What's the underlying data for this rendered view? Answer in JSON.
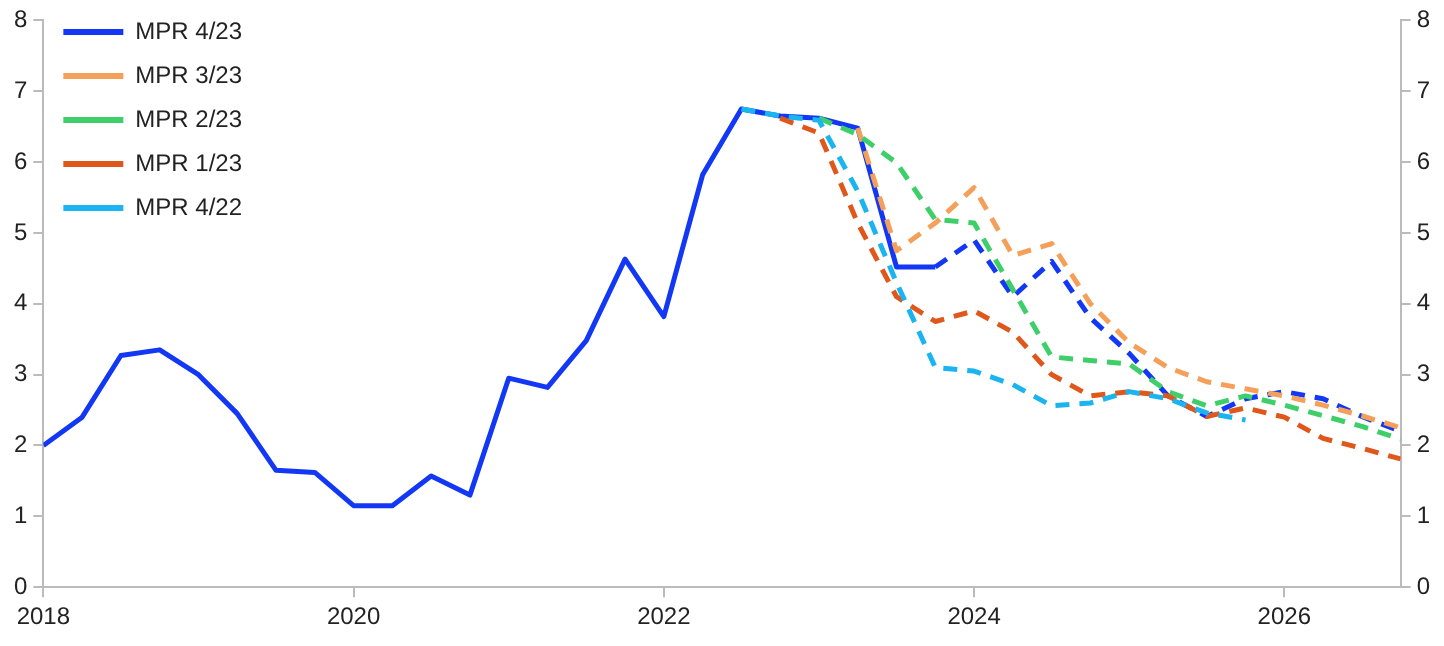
{
  "chart_data": {
    "type": "line",
    "xlim": [
      2018,
      2026.75
    ],
    "xticks": [
      2018,
      2020,
      2022,
      2024,
      2026
    ],
    "ylim": [
      0,
      8
    ],
    "yticks": [
      0,
      1,
      2,
      3,
      4,
      5,
      6,
      7,
      8
    ],
    "y2lim": [
      0,
      8
    ],
    "y2ticks": [
      0,
      1,
      2,
      3,
      4,
      5,
      6,
      7,
      8
    ],
    "grid": false,
    "legend": "top left",
    "marker": "none",
    "series": [
      {
        "color": "#1238f5",
        "line_style": "solid",
        "x": [
          2018,
          2018.25,
          2018.5,
          2018.75,
          2019,
          2019.25,
          2019.5,
          2019.75,
          2020,
          2020.25,
          2020.5,
          2020.75,
          2021,
          2021.25,
          2021.5,
          2021.75,
          2022,
          2022.25,
          2022.5,
          2022.75,
          2023,
          2023.25,
          2023.5,
          2023.75
        ],
        "values": [
          2.0,
          2.4,
          3.27,
          3.35,
          3.0,
          2.45,
          1.65,
          1.62,
          1.15,
          1.15,
          1.57,
          1.3,
          2.95,
          2.82,
          3.48,
          4.63,
          3.82,
          5.82,
          6.75,
          6.65,
          6.62,
          6.48,
          4.52,
          4.52
        ]
      },
      {
        "name": "MPR 4/23",
        "color": "#1238f5",
        "line_style": "dashed",
        "x": [
          2023.75,
          2024,
          2024.25,
          2024.5,
          2024.75,
          2025,
          2025.25,
          2025.5,
          2025.75,
          2026,
          2026.25,
          2026.5,
          2026.75
        ],
        "values": [
          4.52,
          4.9,
          4.1,
          4.6,
          3.8,
          3.3,
          2.7,
          2.41,
          2.66,
          2.76,
          2.66,
          2.41,
          2.2
        ]
      },
      {
        "name": "MPR 3/23",
        "color": "#f5a05a",
        "line_style": "dashed",
        "x": [
          2023.25,
          2023.5,
          2023.75,
          2024,
          2024.25,
          2024.5,
          2024.75,
          2025,
          2025.25,
          2025.5,
          2025.75,
          2026,
          2026.25,
          2026.5,
          2026.75
        ],
        "values": [
          6.48,
          4.75,
          5.14,
          5.64,
          4.68,
          4.85,
          4.0,
          3.45,
          3.1,
          2.9,
          2.8,
          2.7,
          2.57,
          2.42,
          2.25
        ]
      },
      {
        "name": "MPR 2/23",
        "color": "#3ecf6a",
        "line_style": "dashed",
        "x": [
          2023,
          2023.25,
          2023.5,
          2023.75,
          2024,
          2024.25,
          2024.5,
          2024.75,
          2025,
          2025.25,
          2025.5,
          2025.75,
          2026,
          2026.25,
          2026.5,
          2026.75
        ],
        "values": [
          6.62,
          6.39,
          5.99,
          5.19,
          5.14,
          4.2,
          3.25,
          3.2,
          3.15,
          2.76,
          2.56,
          2.7,
          2.57,
          2.42,
          2.27,
          2.09
        ]
      },
      {
        "name": "MPR 1/23",
        "color": "#e0571b",
        "line_style": "dashed",
        "x": [
          2022.75,
          2023,
          2023.25,
          2023.5,
          2023.75,
          2024,
          2024.25,
          2024.5,
          2024.75,
          2025,
          2025.25,
          2025.5,
          2025.75,
          2026,
          2026.25,
          2026.5,
          2026.75
        ],
        "values": [
          6.62,
          6.41,
          5.14,
          4.1,
          3.75,
          3.9,
          3.6,
          3.0,
          2.7,
          2.76,
          2.7,
          2.41,
          2.53,
          2.4,
          2.1,
          1.96,
          1.81
        ]
      },
      {
        "name": "MPR 4/22",
        "color": "#1ab4f0",
        "line_style": "dashed",
        "x": [
          2022.5,
          2022.75,
          2023,
          2023.25,
          2023.5,
          2023.75,
          2024,
          2024.25,
          2024.5,
          2024.75,
          2025,
          2025.25,
          2025.5,
          2025.75
        ],
        "values": [
          6.75,
          6.65,
          6.59,
          5.59,
          4.3,
          3.1,
          3.05,
          2.86,
          2.56,
          2.6,
          2.76,
          2.66,
          2.46,
          2.36
        ]
      }
    ]
  }
}
